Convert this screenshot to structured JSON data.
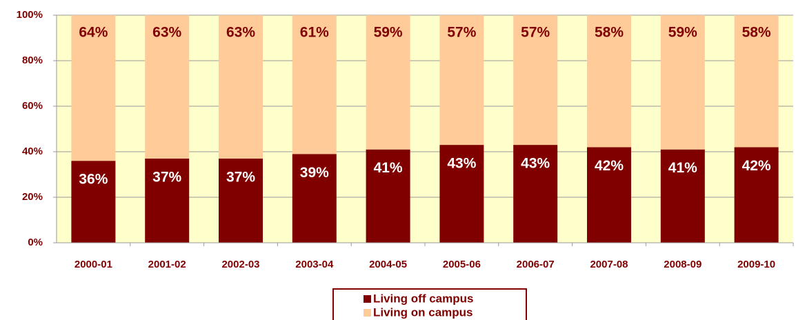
{
  "chart_data": {
    "type": "stacked_bar",
    "categories": [
      "2000-01",
      "2001-02",
      "2002-03",
      "2003-04",
      "2004-05",
      "2005-06",
      "2006-07",
      "2007-08",
      "2008-09",
      "2009-10"
    ],
    "series": [
      {
        "name": "Living off campus",
        "color": "#800000",
        "values": [
          36,
          37,
          37,
          39,
          41,
          43,
          43,
          42,
          41,
          42
        ],
        "value_labels": [
          "36%",
          "37%",
          "37%",
          "39%",
          "41%",
          "43%",
          "43%",
          "42%",
          "41%",
          "42%"
        ]
      },
      {
        "name": "Living on campus",
        "color": "#FFCC99",
        "values": [
          64,
          63,
          63,
          61,
          59,
          57,
          57,
          58,
          59,
          58
        ],
        "value_labels": [
          "64%",
          "63%",
          "63%",
          "61%",
          "59%",
          "57%",
          "57%",
          "58%",
          "59%",
          "58%"
        ]
      }
    ],
    "ylim": [
      0,
      100
    ],
    "yticks": [
      {
        "value": 0,
        "label": "0%"
      },
      {
        "value": 20,
        "label": "20%"
      },
      {
        "value": 40,
        "label": "40%"
      },
      {
        "value": 60,
        "label": "60%"
      },
      {
        "value": 80,
        "label": "80%"
      },
      {
        "value": 100,
        "label": "100%"
      }
    ],
    "grid": true,
    "legend": "bottom"
  }
}
